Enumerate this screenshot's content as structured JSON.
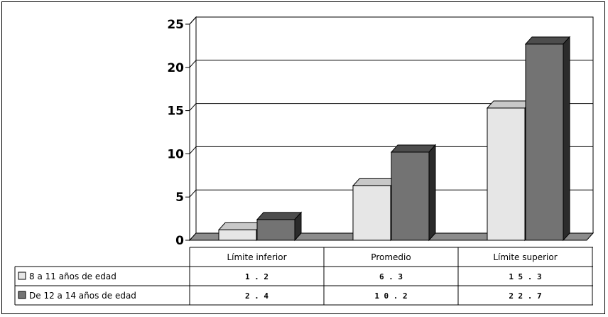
{
  "chart_data": {
    "type": "bar",
    "categories": [
      "Límite inferior",
      "Promedio",
      "Límite superior"
    ],
    "series": [
      {
        "name": "8 a 11 años de edad",
        "values": [
          1.2,
          6.3,
          15.3
        ],
        "value_labels": [
          "1.2",
          "6.3",
          "15.3"
        ],
        "color": "#e6e6e6"
      },
      {
        "name": "De 12 a 14 años de edad",
        "values": [
          2.4,
          10.2,
          22.7
        ],
        "value_labels": [
          "2.4",
          "10.2",
          "22.7"
        ],
        "color": "#737373"
      }
    ],
    "yticks": [
      "0",
      "5",
      "10",
      "15",
      "20",
      "25"
    ],
    "ylim": [
      0,
      25
    ],
    "grid": true,
    "legend": "data-table"
  }
}
